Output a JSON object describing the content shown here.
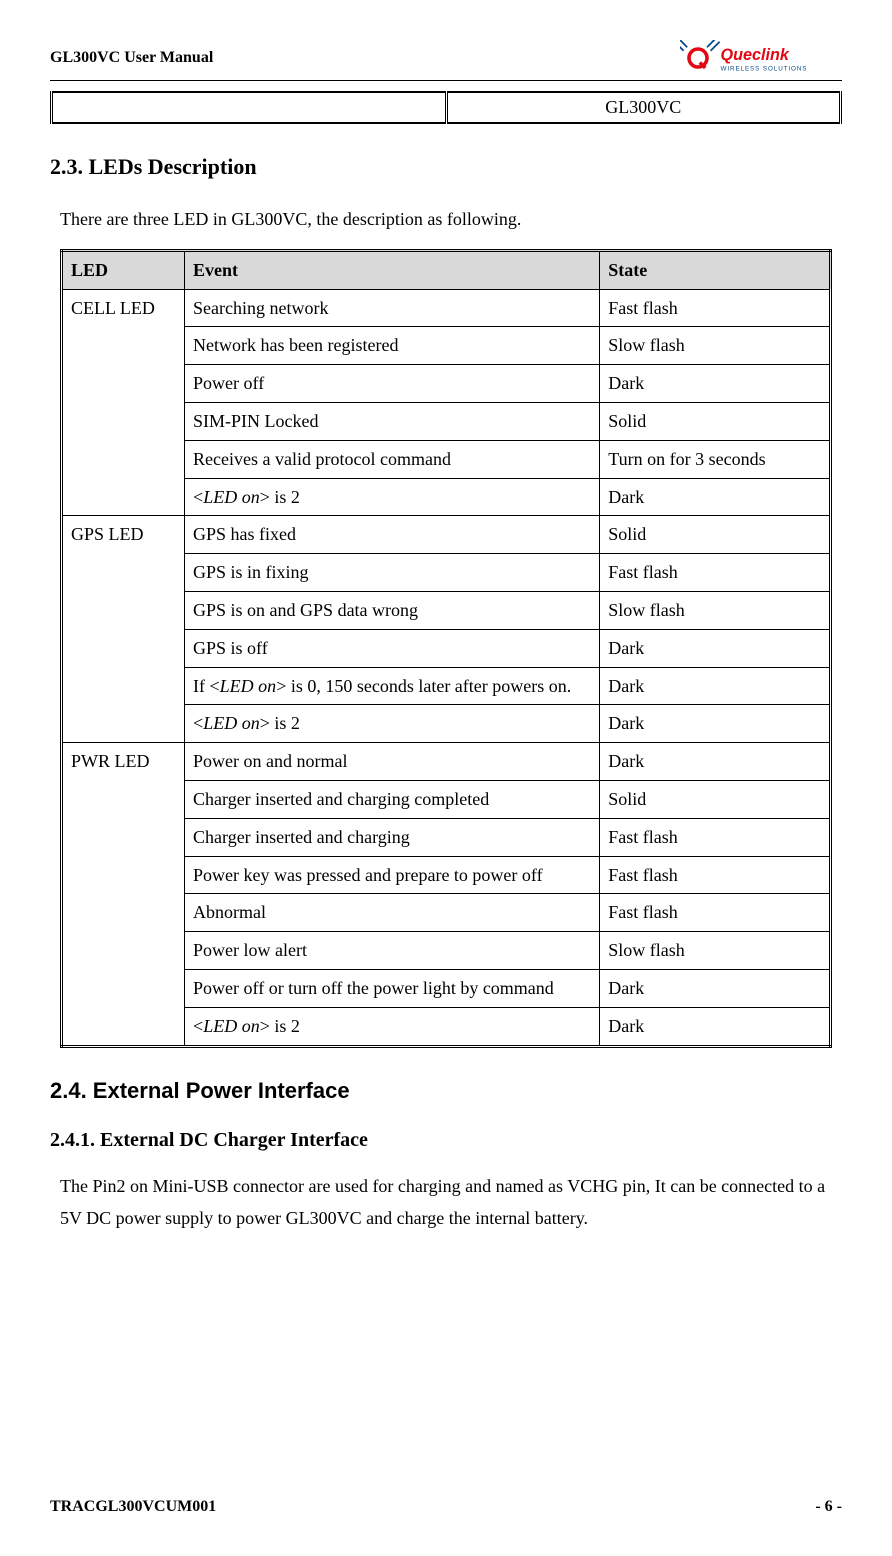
{
  "header": {
    "title": "GL300VC User Manual",
    "logo_brand": "Queclink",
    "logo_tagline": "WIRELESS SOLUTIONS"
  },
  "top_table": {
    "left": "",
    "right": "GL300VC"
  },
  "section_23": {
    "heading": "2.3. LEDs Description",
    "intro": "There are three LED in GL300VC, the description as following."
  },
  "led_table": {
    "headers": {
      "led": "LED",
      "event": "Event",
      "state": "State"
    },
    "header_bg": "#d9d9d9",
    "groups": [
      {
        "led": "CELL LED",
        "rows": [
          {
            "event": "Searching network",
            "state": "Fast flash"
          },
          {
            "event": "Network has been registered",
            "state": "Slow flash"
          },
          {
            "event": "Power off",
            "state": "Dark"
          },
          {
            "event": "SIM-PIN Locked",
            "state": "Solid"
          },
          {
            "event": "Receives a valid protocol command",
            "state": "Turn on for 3 seconds"
          },
          {
            "event_html": "<<span class='italic'>LED on</span>> is 2",
            "state": "Dark"
          }
        ]
      },
      {
        "led": "GPS LED",
        "rows": [
          {
            "event": "GPS has fixed",
            "state": "Solid"
          },
          {
            "event": "GPS is in fixing",
            "state": "Fast flash"
          },
          {
            "event": "GPS is on and GPS data wrong",
            "state": "Slow flash"
          },
          {
            "event": "GPS is off",
            "state": "Dark"
          },
          {
            "event_html": "If <<span class='italic'>LED on</span>> is 0, 150 seconds later after powers on.",
            "state": "Dark"
          },
          {
            "event_html": "<<span class='italic'>LED on</span>> is 2",
            "state": "Dark"
          }
        ]
      },
      {
        "led": "PWR LED",
        "rows": [
          {
            "event": "Power on and normal",
            "state": "Dark"
          },
          {
            "event": "Charger inserted and charging completed",
            "state": "Solid"
          },
          {
            "event": "Charger inserted and charging",
            "state": "Fast flash"
          },
          {
            "event": "Power key was pressed and prepare to power off",
            "state": "Fast flash"
          },
          {
            "event": "Abnormal",
            "state": "Fast flash"
          },
          {
            "event": "Power low alert",
            "state": "Slow flash"
          },
          {
            "event": "Power off or turn off the power light by command",
            "state": "Dark"
          },
          {
            "event_html": "<<span class='italic'>LED on</span>> is 2",
            "state": "Dark"
          }
        ]
      }
    ]
  },
  "section_24": {
    "heading": "2.4. External Power Interface",
    "sub_heading": "2.4.1.   External DC Charger Interface",
    "body": "The Pin2 on Mini-USB connector are used for charging and named as VCHG pin, It can be connected to a 5V DC power supply to power GL300VC and charge the internal battery."
  },
  "footer": {
    "left": "TRACGL300VCUM001",
    "right": "- 6 -"
  },
  "colors": {
    "text": "#000000",
    "background": "#ffffff",
    "table_header_bg": "#d9d9d9",
    "logo_primary": "#e30613",
    "logo_secondary": "#0a4a8a"
  },
  "fonts": {
    "body_family": "Times New Roman",
    "section_24_family": "Arial",
    "body_size_pt": 13,
    "heading_size_pt": 16
  }
}
